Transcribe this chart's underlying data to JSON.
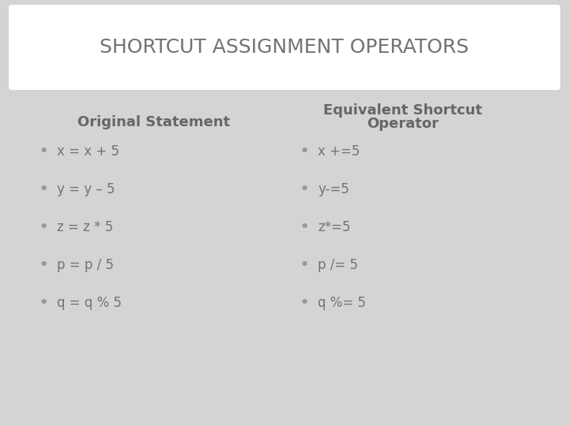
{
  "title": "SHORTCUT ASSIGNMENT OPERATORS",
  "title_fontsize": 18,
  "title_color": "#737373",
  "bg_color": "#d4d4d4",
  "header_bg_color": "#ffffff",
  "col1_header": "Original Statement",
  "col2_header_line1": "Equivalent Shortcut",
  "col2_header_line2": "Operator",
  "header_fontsize": 12,
  "header_color": "#666666",
  "items_col1": [
    "x = x + 5",
    "y = y – 5",
    "z = z * 5",
    "p = p / 5",
    "q = q % 5"
  ],
  "items_col2": [
    "x +=5",
    "y-=5",
    "z*=5",
    "p /= 5",
    "q %= 5"
  ],
  "item_fontsize": 12,
  "item_color": "#737373",
  "bullet_color": "#999999"
}
